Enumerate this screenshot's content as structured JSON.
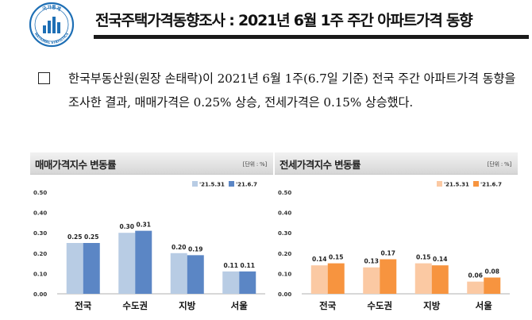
{
  "header": {
    "title": "전국주택가격동향조사 : 2021년 6월 1주 주간 아파트가격 동향",
    "logo_text_top": "국가통계",
    "logo_text_bottom": "NATIONAL STATISTICS",
    "logo_color": "#1e6fb5"
  },
  "summary": {
    "text": "한국부동산원(원장 손태락)이 2021년 6월 1주(6.7일 기준) 전국 주간 아파트가격 동향을 조사한 결과, 매매가격은 0.25% 상승, 전세가격은 0.15% 상승했다."
  },
  "chart_data": [
    {
      "type": "bar",
      "title": "매매가격지수 변동률",
      "unit": "[단위 : %]",
      "categories": [
        "전국",
        "수도권",
        "지방",
        "서울"
      ],
      "series": [
        {
          "name": "'21.5.31",
          "values": [
            0.25,
            0.3,
            0.2,
            0.11
          ],
          "color": "#b8cce4"
        },
        {
          "name": "'21.6.7",
          "values": [
            0.25,
            0.31,
            0.19,
            0.11
          ],
          "color": "#5b86c5"
        }
      ],
      "y_ticks": [
        "0.00",
        "0.10",
        "0.20",
        "0.30",
        "0.40",
        "0.50"
      ],
      "ylim": [
        0,
        0.5
      ],
      "grid": false,
      "legend": "top-right"
    },
    {
      "type": "bar",
      "title": "전세가격지수 변동률",
      "unit": "[단위 : %]",
      "categories": [
        "전국",
        "수도권",
        "지방",
        "서울"
      ],
      "series": [
        {
          "name": "'21.5.31",
          "values": [
            0.14,
            0.13,
            0.15,
            0.06
          ],
          "color": "#fbc9a3"
        },
        {
          "name": "'21.6.7",
          "values": [
            0.15,
            0.17,
            0.14,
            0.08
          ],
          "color": "#f7943f"
        }
      ],
      "y_ticks": [
        "0.00",
        "0.10",
        "0.20",
        "0.30",
        "0.40",
        "0.50"
      ],
      "ylim": [
        0,
        0.5
      ],
      "grid": false,
      "legend": "top-right"
    }
  ]
}
